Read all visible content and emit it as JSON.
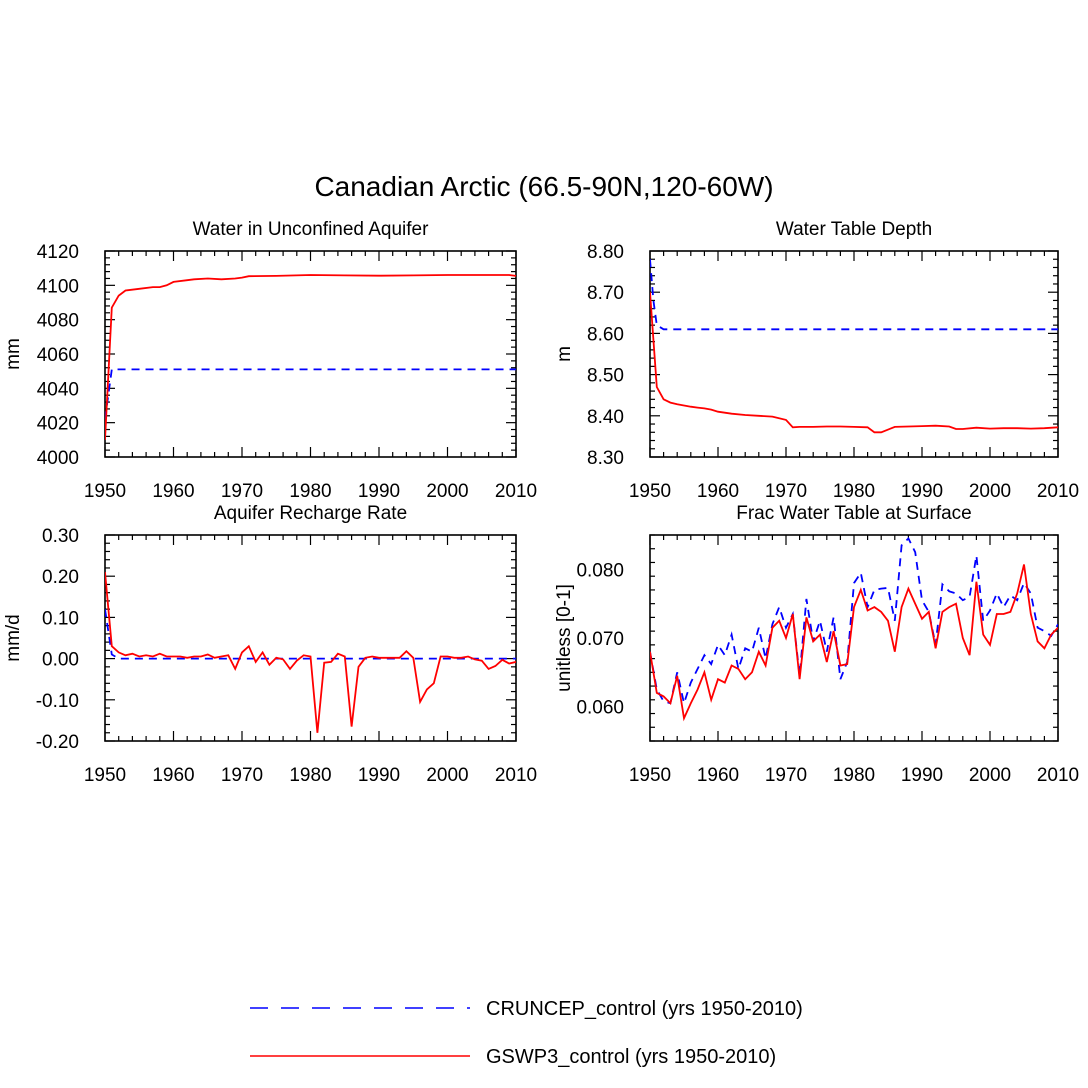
{
  "figure": {
    "title": "Canadian Arctic (66.5-90N,120-60W)"
  },
  "legend": {
    "position": "bottom-center",
    "items": [
      {
        "label": "CRUNCEP_control (yrs 1950-2010)",
        "color": "#0000ff",
        "style": "dashed"
      },
      {
        "label": "GSWP3_control (yrs 1950-2010)",
        "color": "#ff0000",
        "style": "solid"
      }
    ]
  },
  "chart_data": [
    {
      "type": "line",
      "title": "Water in Unconfined Aquifer",
      "xlabel": "",
      "ylabel": "mm",
      "xlim": [
        1950,
        2010
      ],
      "ylim": [
        4000,
        4120
      ],
      "xticks": [
        1950,
        1960,
        1970,
        1980,
        1990,
        2000,
        2010
      ],
      "yticks": [
        4000,
        4020,
        4040,
        4060,
        4080,
        4100,
        4120
      ],
      "ytick_labels": [
        "4000",
        "4020",
        "4040",
        "4060",
        "4080",
        "4100",
        "4120"
      ],
      "series": [
        {
          "name": "CRUNCEP_control (yrs 1950-2010)",
          "color": "#0000ff",
          "dashed": true,
          "x": [
            1950,
            1951,
            1952,
            1960,
            1970,
            1980,
            1990,
            2000,
            2010
          ],
          "y": [
            4022,
            4051,
            4051,
            4051,
            4051,
            4051,
            4051,
            4051,
            4051
          ]
        },
        {
          "name": "GSWP3_control (yrs 1950-2010)",
          "color": "#ff0000",
          "dashed": false,
          "x": [
            1950,
            1951,
            1952,
            1953,
            1955,
            1957,
            1958,
            1959,
            1960,
            1962,
            1963,
            1965,
            1967,
            1969,
            1970,
            1971,
            1975,
            1980,
            1985,
            1990,
            1995,
            2000,
            2005,
            2009,
            2010
          ],
          "y": [
            4010,
            4087,
            4094,
            4097,
            4098,
            4099,
            4099,
            4100,
            4102,
            4103,
            4103.5,
            4104,
            4103.5,
            4104,
            4104.5,
            4105.3,
            4105.5,
            4106,
            4105.8,
            4105.6,
            4105.8,
            4106,
            4106,
            4106,
            4105.5
          ]
        }
      ]
    },
    {
      "type": "line",
      "title": "Water Table Depth",
      "xlabel": "",
      "ylabel": "m",
      "xlim": [
        1950,
        2010
      ],
      "ylim": [
        8.3,
        8.8
      ],
      "xticks": [
        1950,
        1960,
        1970,
        1980,
        1990,
        2000,
        2010
      ],
      "yticks": [
        8.3,
        8.4,
        8.5,
        8.6,
        8.7,
        8.8
      ],
      "ytick_labels": [
        "8.30",
        "8.40",
        "8.50",
        "8.60",
        "8.70",
        "8.80"
      ],
      "series": [
        {
          "name": "CRUNCEP_control (yrs 1950-2010)",
          "color": "#0000ff",
          "dashed": true,
          "x": [
            1950,
            1950.5,
            1951,
            1952,
            1960,
            1970,
            1980,
            1990,
            2000,
            2010
          ],
          "y": [
            8.78,
            8.68,
            8.62,
            8.61,
            8.61,
            8.61,
            8.61,
            8.61,
            8.61,
            8.61
          ]
        },
        {
          "name": "GSWP3_control (yrs 1950-2010)",
          "color": "#ff0000",
          "dashed": false,
          "x": [
            1950,
            1951,
            1952,
            1953,
            1954,
            1955,
            1956,
            1957,
            1958,
            1959,
            1960,
            1962,
            1964,
            1966,
            1968,
            1970,
            1971,
            1972,
            1974,
            1976,
            1978,
            1980,
            1982,
            1983,
            1984,
            1986,
            1988,
            1990,
            1992,
            1994,
            1995,
            1996,
            1998,
            2000,
            2002,
            2004,
            2006,
            2008,
            2010
          ],
          "y": [
            8.7,
            8.47,
            8.44,
            8.432,
            8.428,
            8.425,
            8.422,
            8.42,
            8.418,
            8.415,
            8.41,
            8.405,
            8.402,
            8.4,
            8.398,
            8.39,
            8.372,
            8.373,
            8.373,
            8.374,
            8.374,
            8.373,
            8.372,
            8.36,
            8.36,
            8.373,
            8.374,
            8.375,
            8.376,
            8.374,
            8.368,
            8.368,
            8.371,
            8.369,
            8.37,
            8.37,
            8.369,
            8.37,
            8.372
          ]
        }
      ]
    },
    {
      "type": "line",
      "title": "Aquifer Recharge Rate",
      "xlabel": "",
      "ylabel": "mm/d",
      "xlim": [
        1950,
        2010
      ],
      "ylim": [
        -0.2,
        0.3
      ],
      "xticks": [
        1950,
        1960,
        1970,
        1980,
        1990,
        2000,
        2010
      ],
      "yticks": [
        -0.2,
        -0.1,
        0.0,
        0.1,
        0.2,
        0.3
      ],
      "ytick_labels": [
        "-0.20",
        "-0.10",
        "0.00",
        "0.10",
        "0.20",
        "0.30"
      ],
      "series": [
        {
          "name": "CRUNCEP_control (yrs 1950-2010)",
          "color": "#0000ff",
          "dashed": true,
          "x": [
            1950,
            1951,
            1952,
            1960,
            1970,
            1980,
            1990,
            2000,
            2010
          ],
          "y": [
            0.12,
            0.01,
            0.0,
            0.0,
            0.0,
            0.0,
            0.0,
            0.0,
            0.0
          ]
        },
        {
          "name": "GSWP3_control (yrs 1950-2010)",
          "color": "#ff0000",
          "dashed": false,
          "x": [
            1950,
            1951,
            1952,
            1953,
            1954,
            1955,
            1956,
            1957,
            1958,
            1959,
            1960,
            1961,
            1962,
            1963,
            1964,
            1965,
            1966,
            1967,
            1968,
            1969,
            1970,
            1971,
            1972,
            1973,
            1974,
            1975,
            1976,
            1977,
            1978,
            1979,
            1980,
            1981,
            1982,
            1983,
            1984,
            1985,
            1986,
            1987,
            1988,
            1989,
            1990,
            1991,
            1992,
            1993,
            1994,
            1995,
            1996,
            1997,
            1998,
            1999,
            2000,
            2001,
            2002,
            2003,
            2004,
            2005,
            2006,
            2007,
            2008,
            2009,
            2010
          ],
          "y": [
            0.21,
            0.03,
            0.015,
            0.008,
            0.012,
            0.005,
            0.008,
            0.005,
            0.012,
            0.005,
            0.005,
            0.005,
            0.002,
            0.005,
            0.005,
            0.01,
            0.002,
            0.005,
            0.008,
            -0.025,
            0.015,
            0.03,
            -0.008,
            0.015,
            -0.015,
            0.002,
            -0.002,
            -0.025,
            -0.005,
            0.008,
            0.005,
            -0.18,
            -0.01,
            -0.008,
            0.012,
            0.005,
            -0.165,
            -0.02,
            0.002,
            0.005,
            0.002,
            0.002,
            0.002,
            0.002,
            0.018,
            0.002,
            -0.105,
            -0.075,
            -0.06,
            0.005,
            0.005,
            0.002,
            0.002,
            0.005,
            -0.002,
            -0.005,
            -0.025,
            -0.018,
            -0.003,
            -0.012,
            -0.008
          ]
        }
      ]
    },
    {
      "type": "line",
      "title": "Frac Water Table at Surface",
      "xlabel": "",
      "ylabel": "unitless [0-1]",
      "xlim": [
        1950,
        2010
      ],
      "ylim": [
        0.055,
        0.085
      ],
      "xticks": [
        1950,
        1960,
        1970,
        1980,
        1990,
        2000,
        2010
      ],
      "yticks": [
        0.06,
        0.07,
        0.08
      ],
      "ytick_labels": [
        "0.060",
        "0.070",
        "0.080"
      ],
      "series": [
        {
          "name": "CRUNCEP_control (yrs 1950-2010)",
          "color": "#0000ff",
          "dashed": true,
          "x": [
            1950,
            1951,
            1952,
            1953,
            1954,
            1955,
            1956,
            1957,
            1958,
            1959,
            1960,
            1961,
            1962,
            1963,
            1964,
            1965,
            1966,
            1967,
            1968,
            1969,
            1970,
            1971,
            1972,
            1973,
            1974,
            1975,
            1976,
            1977,
            1978,
            1979,
            1980,
            1981,
            1982,
            1983,
            1984,
            1985,
            1986,
            1987,
            1988,
            1989,
            1990,
            1991,
            1992,
            1993,
            1994,
            1995,
            1996,
            1997,
            1998,
            1999,
            2000,
            2001,
            2002,
            2003,
            2004,
            2005,
            2006,
            2007,
            2008,
            2009,
            2010
          ],
          "y": [
            0.068,
            0.0625,
            0.0608,
            0.0605,
            0.065,
            0.0605,
            0.0635,
            0.0655,
            0.0675,
            0.0662,
            0.069,
            0.0675,
            0.0705,
            0.0655,
            0.0685,
            0.068,
            0.0715,
            0.067,
            0.072,
            0.0745,
            0.0715,
            0.0735,
            0.0645,
            0.0757,
            0.0695,
            0.0725,
            0.068,
            0.073,
            0.064,
            0.0665,
            0.078,
            0.0795,
            0.0745,
            0.077,
            0.0772,
            0.0773,
            0.0725,
            0.0835,
            0.0845,
            0.0825,
            0.0755,
            0.0738,
            0.069,
            0.0778,
            0.0768,
            0.0765,
            0.0755,
            0.076,
            0.082,
            0.0725,
            0.074,
            0.0765,
            0.0745,
            0.0762,
            0.0755,
            0.078,
            0.0765,
            0.0715,
            0.071,
            0.0703,
            0.072
          ]
        },
        {
          "name": "GSWP3_control (yrs 1950-2010)",
          "color": "#ff0000",
          "dashed": false,
          "x": [
            1950,
            1951,
            1952,
            1953,
            1954,
            1955,
            1956,
            1957,
            1958,
            1959,
            1960,
            1961,
            1962,
            1963,
            1964,
            1965,
            1966,
            1967,
            1968,
            1969,
            1970,
            1971,
            1972,
            1973,
            1974,
            1975,
            1976,
            1977,
            1978,
            1979,
            1980,
            1981,
            1982,
            1983,
            1984,
            1985,
            1986,
            1987,
            1988,
            1989,
            1990,
            1991,
            1992,
            1993,
            1994,
            1995,
            1996,
            1997,
            1998,
            1999,
            2000,
            2001,
            2002,
            2003,
            2004,
            2005,
            2006,
            2007,
            2008,
            2009,
            2010
          ],
          "y": [
            0.068,
            0.062,
            0.0615,
            0.0605,
            0.0645,
            0.0583,
            0.0605,
            0.0625,
            0.065,
            0.061,
            0.064,
            0.0635,
            0.066,
            0.0655,
            0.064,
            0.065,
            0.068,
            0.066,
            0.0715,
            0.0725,
            0.07,
            0.0735,
            0.064,
            0.073,
            0.0695,
            0.0705,
            0.0665,
            0.071,
            0.066,
            0.0662,
            0.0745,
            0.077,
            0.074,
            0.0745,
            0.0738,
            0.0725,
            0.068,
            0.0745,
            0.0772,
            0.075,
            0.0728,
            0.0738,
            0.0685,
            0.0738,
            0.0745,
            0.075,
            0.07,
            0.0675,
            0.0782,
            0.0705,
            0.069,
            0.0735,
            0.0735,
            0.0738,
            0.0765,
            0.0807,
            0.0735,
            0.0695,
            0.0685,
            0.0705,
            0.0715
          ]
        }
      ]
    }
  ]
}
